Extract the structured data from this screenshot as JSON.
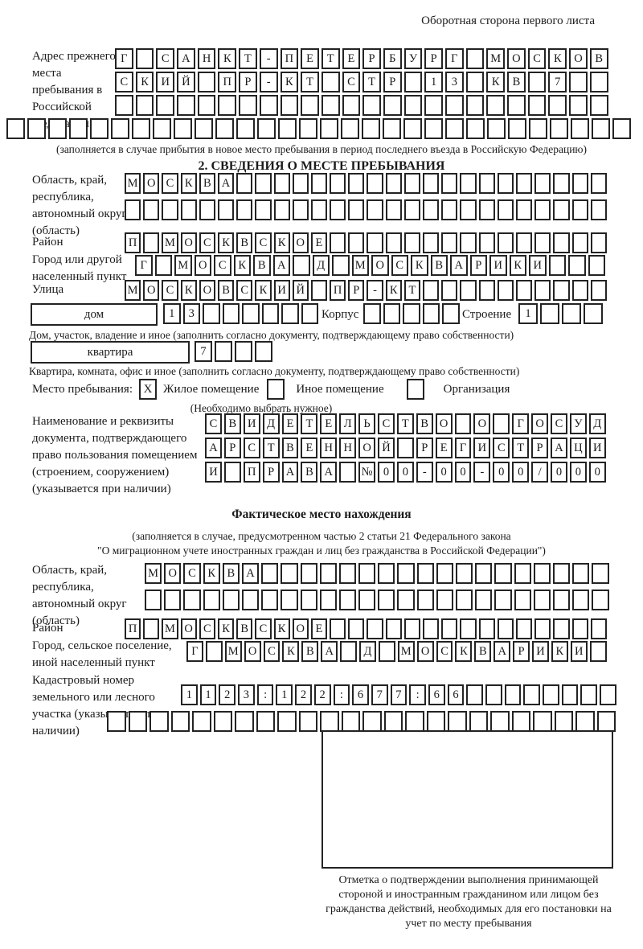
{
  "page": {
    "header_note": "Оборотная сторона первого листа"
  },
  "prev_address": {
    "label": "Адрес прежнего места пребывания в Российской Федерации",
    "rows": [
      [
        "Г",
        "",
        "С",
        "А",
        "Н",
        "К",
        "Т",
        "-",
        "П",
        "Е",
        "Т",
        "Е",
        "Р",
        "Б",
        "У",
        "Р",
        "Г",
        "",
        "М",
        "О",
        "С",
        "К",
        "О",
        "В"
      ],
      [
        "С",
        "К",
        "И",
        "Й",
        "",
        "П",
        "Р",
        "-",
        "К",
        "Т",
        "",
        "С",
        "Т",
        "Р",
        "",
        "1",
        "3",
        "",
        "К",
        "В",
        "",
        "7",
        "",
        ""
      ],
      [
        "",
        "",
        "",
        "",
        "",
        "",
        "",
        "",
        "",
        "",
        "",
        "",
        "",
        "",
        "",
        "",
        "",
        "",
        "",
        "",
        "",
        "",
        "",
        ""
      ],
      [
        "",
        "",
        "",
        "",
        "",
        "",
        "",
        "",
        "",
        "",
        "",
        "",
        "",
        "",
        "",
        "",
        "",
        "",
        "",
        "",
        "",
        "",
        "",
        "",
        "",
        "",
        "",
        "",
        "",
        ""
      ]
    ],
    "note": "(заполняется в случае прибытия в новое место пребывания в период последнего въезда в Российскую Федерацию)"
  },
  "section2": {
    "title": "2. СВЕДЕНИЯ О МЕСТЕ ПРЕБЫВАНИЯ",
    "region": {
      "label": "Область, край, республика, автономный округ (область)",
      "rows": [
        [
          "М",
          "О",
          "С",
          "К",
          "В",
          "А",
          "",
          "",
          "",
          "",
          "",
          "",
          "",
          "",
          "",
          "",
          "",
          "",
          "",
          "",
          "",
          "",
          "",
          "",
          "",
          ""
        ],
        [
          "",
          "",
          "",
          "",
          "",
          "",
          "",
          "",
          "",
          "",
          "",
          "",
          "",
          "",
          "",
          "",
          "",
          "",
          "",
          "",
          "",
          "",
          "",
          "",
          "",
          ""
        ]
      ]
    },
    "district": {
      "label": "Район",
      "cells": [
        "П",
        "",
        "М",
        "О",
        "С",
        "К",
        "В",
        "С",
        "К",
        "О",
        "Е",
        "",
        "",
        "",
        "",
        "",
        "",
        "",
        "",
        "",
        "",
        "",
        "",
        "",
        "",
        ""
      ]
    },
    "city": {
      "label": "Город или другой населенный пункт",
      "cells": [
        "Г",
        "",
        "М",
        "О",
        "С",
        "К",
        "В",
        "А",
        "",
        "Д",
        "",
        "М",
        "О",
        "С",
        "К",
        "В",
        "А",
        "Р",
        "И",
        "К",
        "И",
        "",
        "",
        ""
      ]
    },
    "street": {
      "label": "Улица",
      "cells": [
        "М",
        "О",
        "С",
        "К",
        "О",
        "В",
        "С",
        "К",
        "И",
        "Й",
        "",
        "П",
        "Р",
        "-",
        "К",
        "Т",
        "",
        "",
        "",
        "",
        "",
        "",
        "",
        "",
        "",
        ""
      ]
    },
    "house": {
      "label": "дом",
      "cells": [
        "1",
        "3",
        "",
        "",
        "",
        "",
        "",
        ""
      ],
      "korpus_label": "Корпус",
      "korpus_cells": [
        "",
        "",
        "",
        "",
        ""
      ],
      "stroenie_label": "Строение",
      "stroenie_cells": [
        "1",
        "",
        "",
        ""
      ]
    },
    "house_note": "Дом, участок, владение и иное (заполнить согласно документу, подтверждающему право собственности)",
    "apartment": {
      "label": "квартира",
      "cells": [
        "7",
        "",
        "",
        ""
      ]
    },
    "apartment_note": "Квартира, комната, офис и иное (заполнить согласно документу, подтверждающему право собственности)",
    "stay_type": {
      "label": "Место пребывания:",
      "options": [
        {
          "mark": "X",
          "label": "Жилое помещение"
        },
        {
          "mark": "",
          "label": "Иное помещение"
        },
        {
          "mark": "",
          "label": "Организация"
        }
      ],
      "note": "(Необходимо выбрать нужное)"
    },
    "document": {
      "label": "Наименование и реквизиты документа, подтверждающего право пользования помещением (строением, сооружением) (указывается при наличии)",
      "rows": [
        [
          "С",
          "В",
          "И",
          "Д",
          "Е",
          "Т",
          "Е",
          "Л",
          "Ь",
          "С",
          "Т",
          "В",
          "О",
          "",
          "О",
          "",
          "Г",
          "О",
          "С",
          "У",
          "Д"
        ],
        [
          "А",
          "Р",
          "С",
          "Т",
          "В",
          "Е",
          "Н",
          "Н",
          "О",
          "Й",
          "",
          "Р",
          "Е",
          "Г",
          "И",
          "С",
          "Т",
          "Р",
          "А",
          "Ц",
          "И"
        ],
        [
          "И",
          "",
          "П",
          "Р",
          "А",
          "В",
          "А",
          "",
          "№",
          "0",
          "0",
          "-",
          "0",
          "0",
          "-",
          "0",
          "0",
          "/",
          "0",
          "0",
          "0"
        ]
      ]
    }
  },
  "actual_location": {
    "title": "Фактическое место нахождения",
    "note1": "(заполняется в случае, предусмотренном частью 2 статьи 21 Федерального закона",
    "note2": "\"О миграционном учете иностранных граждан и лиц без гражданства в Российской Федерации\")",
    "region": {
      "label": "Область, край, республика, автономный округ (область)",
      "rows": [
        [
          "М",
          "О",
          "С",
          "К",
          "В",
          "А",
          "",
          "",
          "",
          "",
          "",
          "",
          "",
          "",
          "",
          "",
          "",
          "",
          "",
          "",
          "",
          "",
          "",
          ""
        ],
        [
          "",
          "",
          "",
          "",
          "",
          "",
          "",
          "",
          "",
          "",
          "",
          "",
          "",
          "",
          "",
          "",
          "",
          "",
          "",
          "",
          "",
          "",
          "",
          ""
        ]
      ]
    },
    "district": {
      "label": "Район",
      "cells": [
        "П",
        "",
        "М",
        "О",
        "С",
        "К",
        "В",
        "С",
        "К",
        "О",
        "Е",
        "",
        "",
        "",
        "",
        "",
        "",
        "",
        "",
        "",
        "",
        "",
        "",
        "",
        "",
        ""
      ]
    },
    "city": {
      "label": "Город, сельское поселение, иной населенный пункт",
      "cells": [
        "Г",
        "",
        "М",
        "О",
        "С",
        "К",
        "В",
        "А",
        "",
        "Д",
        "",
        "М",
        "О",
        "С",
        "К",
        "В",
        "А",
        "Р",
        "И",
        "К",
        "И",
        ""
      ]
    },
    "cadastre": {
      "label": "Кадастровый номер земельного или лесного участка (указывается при наличии)",
      "rows": [
        [
          "1",
          "1",
          "2",
          "3",
          ":",
          "1",
          "2",
          "2",
          ":",
          "6",
          "7",
          "7",
          ":",
          "6",
          "6",
          "",
          "",
          "",
          "",
          "",
          "",
          "",
          ""
        ],
        [
          "",
          "",
          "",
          "",
          "",
          "",
          "",
          "",
          "",
          "",
          "",
          "",
          "",
          "",
          "",
          "",
          "",
          "",
          "",
          "",
          "",
          "",
          "",
          ""
        ]
      ]
    }
  },
  "stamp": {
    "note": "Отметка о подтверждении выполнения принимающей стороной и иностранным гражданином или лицом без гражданства действий, необходимых для его постановки на учет по месту пребывания"
  }
}
